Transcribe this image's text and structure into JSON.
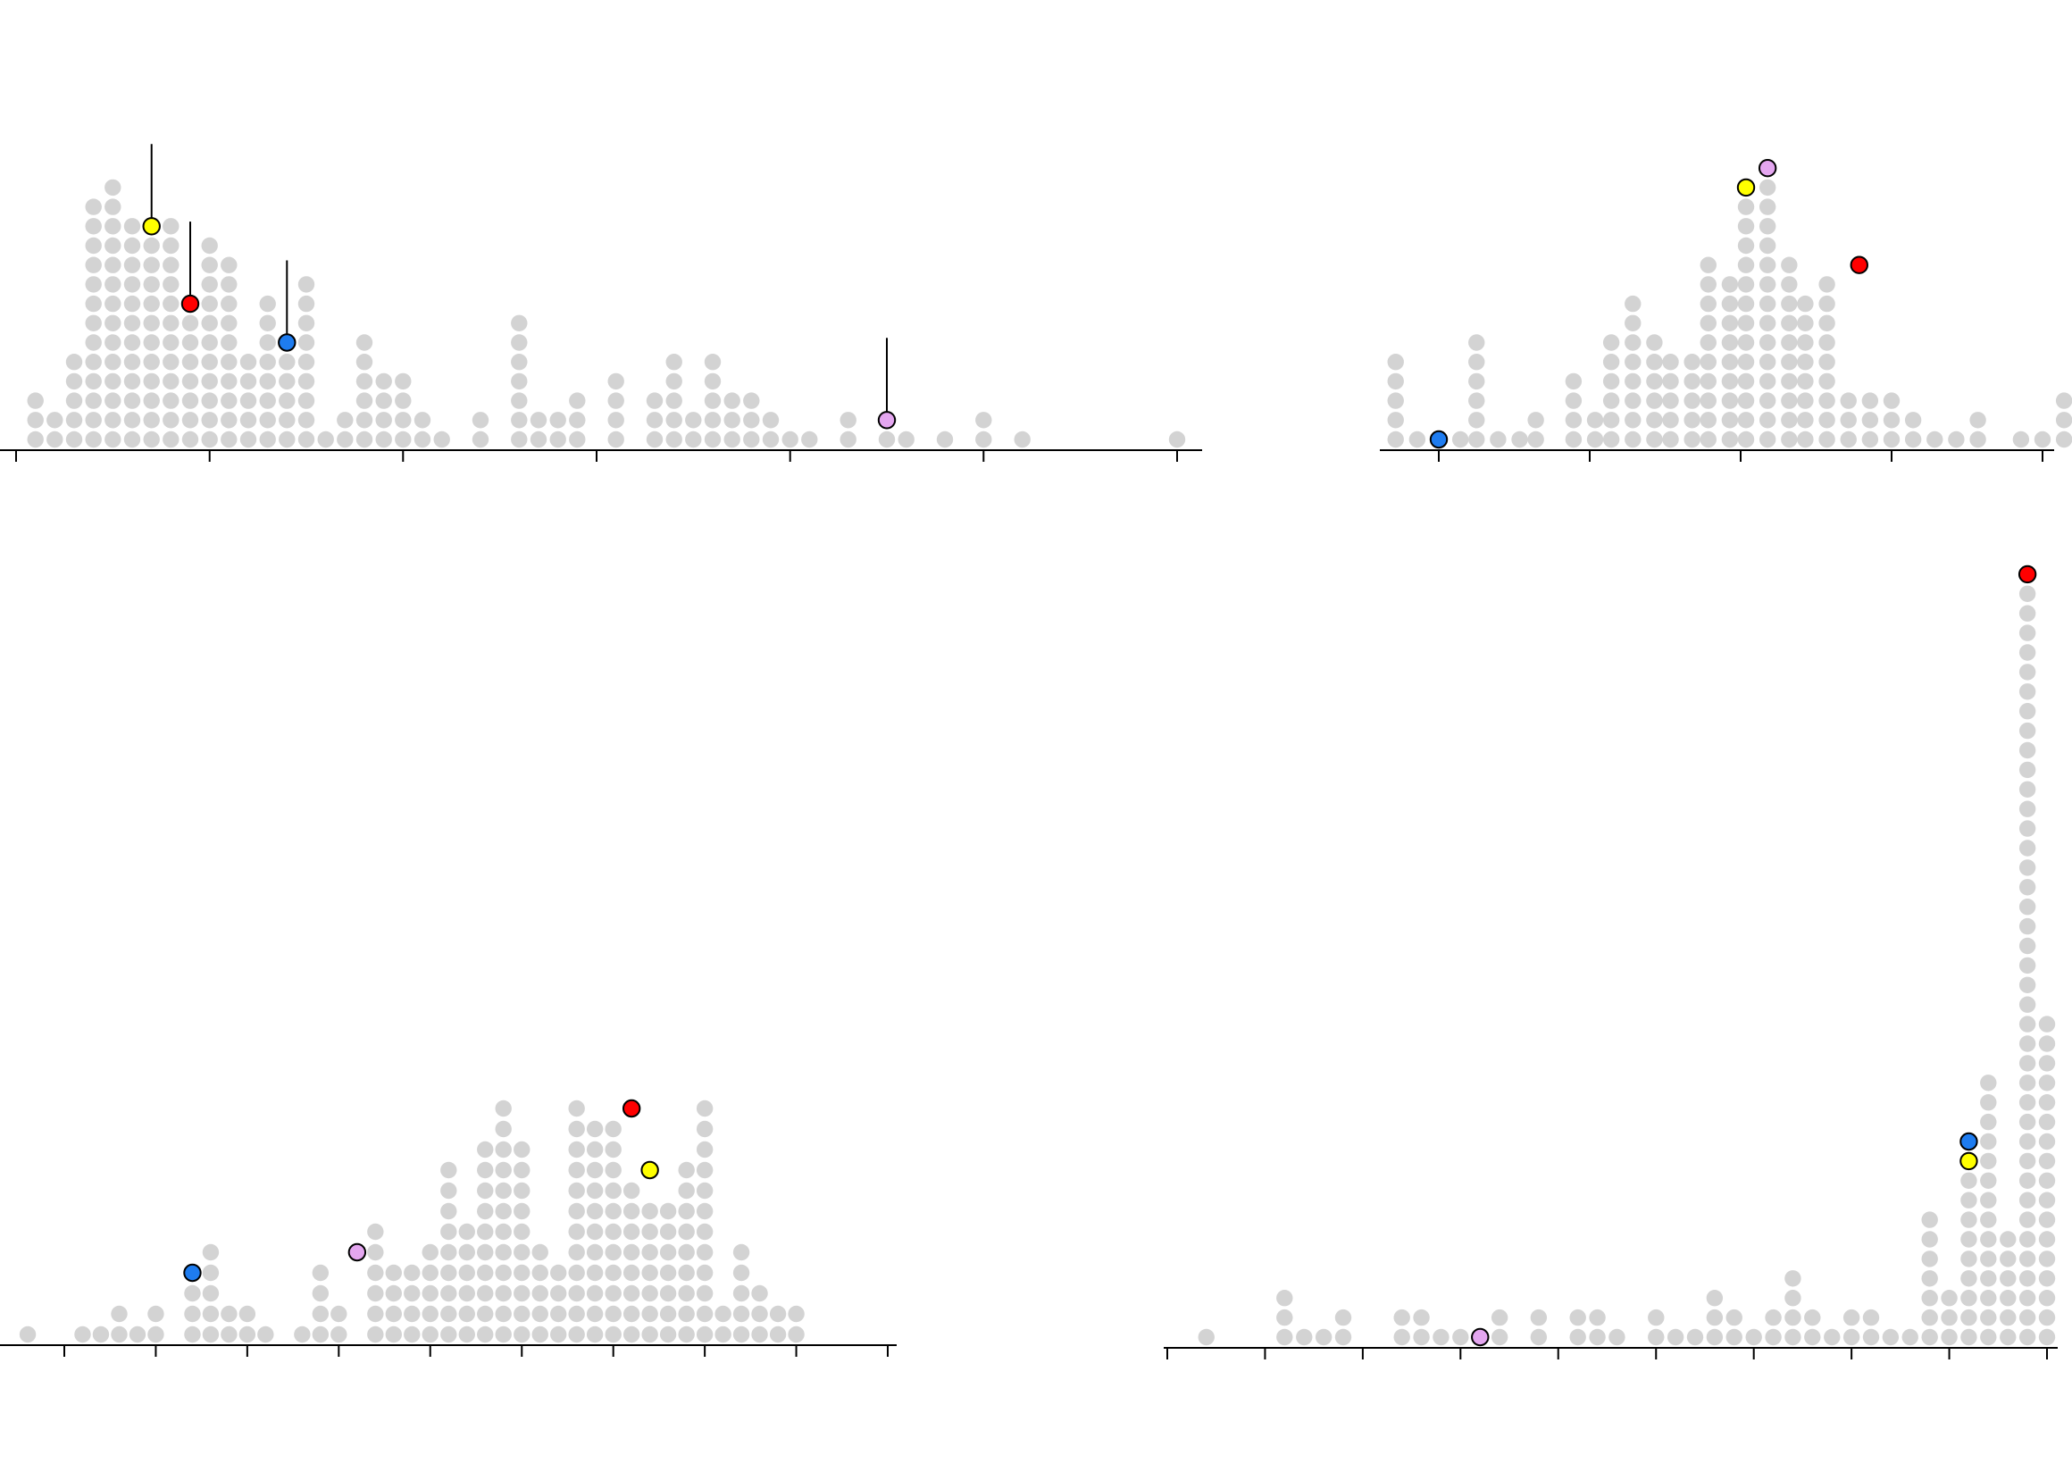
{
  "chart_data": [
    {
      "id": "top-left",
      "type": "dot-histogram",
      "xlim": [
        0.0,
        1.0
      ],
      "ticks": [
        0.0,
        0.1667,
        0.3333,
        0.5,
        0.6667,
        0.8333,
        1.0
      ],
      "columns": [
        {
          "x": 0.0167,
          "count": 3
        },
        {
          "x": 0.0333,
          "count": 2
        },
        {
          "x": 0.05,
          "count": 5
        },
        {
          "x": 0.0667,
          "count": 13
        },
        {
          "x": 0.0833,
          "count": 14
        },
        {
          "x": 0.1,
          "count": 12
        },
        {
          "x": 0.1167,
          "count": 12
        },
        {
          "x": 0.1333,
          "count": 12
        },
        {
          "x": 0.15,
          "count": 8
        },
        {
          "x": 0.1667,
          "count": 11
        },
        {
          "x": 0.1833,
          "count": 10
        },
        {
          "x": 0.2,
          "count": 5
        },
        {
          "x": 0.2167,
          "count": 8
        },
        {
          "x": 0.2333,
          "count": 6
        },
        {
          "x": 0.25,
          "count": 9
        },
        {
          "x": 0.2667,
          "count": 1
        },
        {
          "x": 0.2833,
          "count": 2
        },
        {
          "x": 0.3,
          "count": 6
        },
        {
          "x": 0.3167,
          "count": 4
        },
        {
          "x": 0.3333,
          "count": 4
        },
        {
          "x": 0.35,
          "count": 2
        },
        {
          "x": 0.3667,
          "count": 1
        },
        {
          "x": 0.4,
          "count": 2
        },
        {
          "x": 0.4333,
          "count": 7
        },
        {
          "x": 0.45,
          "count": 2
        },
        {
          "x": 0.4667,
          "count": 2
        },
        {
          "x": 0.4833,
          "count": 3
        },
        {
          "x": 0.5167,
          "count": 4
        },
        {
          "x": 0.55,
          "count": 3
        },
        {
          "x": 0.5667,
          "count": 5
        },
        {
          "x": 0.5833,
          "count": 2
        },
        {
          "x": 0.6,
          "count": 5
        },
        {
          "x": 0.6167,
          "count": 3
        },
        {
          "x": 0.6333,
          "count": 3
        },
        {
          "x": 0.65,
          "count": 2
        },
        {
          "x": 0.6667,
          "count": 1
        },
        {
          "x": 0.6833,
          "count": 1
        },
        {
          "x": 0.7167,
          "count": 2
        },
        {
          "x": 0.75,
          "count": 2
        },
        {
          "x": 0.7667,
          "count": 1
        },
        {
          "x": 0.8,
          "count": 1
        },
        {
          "x": 0.8333,
          "count": 2
        },
        {
          "x": 0.8667,
          "count": 1
        },
        {
          "x": 1.0,
          "count": 1
        }
      ],
      "highlights": [
        {
          "x": 0.1167,
          "level": 12,
          "color": "#ffff00",
          "stem": true
        },
        {
          "x": 0.15,
          "level": 8,
          "color": "#ff0000",
          "stem": true
        },
        {
          "x": 0.2333,
          "level": 6,
          "color": "#1e7cf0",
          "stem": true
        },
        {
          "x": 0.75,
          "level": 2,
          "color": "#e4a6f0",
          "stem": true
        }
      ]
    },
    {
      "id": "top-right",
      "type": "dot-histogram",
      "xlim": [
        0.0,
        1.0
      ],
      "ticks": [
        0.0,
        0.25,
        0.5,
        0.75,
        1.0
      ],
      "columns": [
        {
          "x": -0.0714,
          "count": 5
        },
        {
          "x": -0.0357,
          "count": 1
        },
        {
          "x": 0.0,
          "count": 1
        },
        {
          "x": 0.0357,
          "count": 1
        },
        {
          "x": 0.0625,
          "count": 6
        },
        {
          "x": 0.0982,
          "count": 1
        },
        {
          "x": 0.1339,
          "count": 1
        },
        {
          "x": 0.1607,
          "count": 2
        },
        {
          "x": 0.2232,
          "count": 4
        },
        {
          "x": 0.2589,
          "count": 2
        },
        {
          "x": 0.2857,
          "count": 6
        },
        {
          "x": 0.3214,
          "count": 8
        },
        {
          "x": 0.3571,
          "count": 6
        },
        {
          "x": 0.3839,
          "count": 5
        },
        {
          "x": 0.4196,
          "count": 5
        },
        {
          "x": 0.4464,
          "count": 10
        },
        {
          "x": 0.4821,
          "count": 9
        },
        {
          "x": 0.5089,
          "count": 14
        },
        {
          "x": 0.5446,
          "count": 15
        },
        {
          "x": 0.5804,
          "count": 10
        },
        {
          "x": 0.6071,
          "count": 8
        },
        {
          "x": 0.6429,
          "count": 9
        },
        {
          "x": 0.6786,
          "count": 3
        },
        {
          "x": 0.7143,
          "count": 3
        },
        {
          "x": 0.75,
          "count": 3
        },
        {
          "x": 0.7857,
          "count": 2
        },
        {
          "x": 0.8214,
          "count": 1
        },
        {
          "x": 0.8571,
          "count": 1
        },
        {
          "x": 0.8929,
          "count": 2
        },
        {
          "x": 0.9643,
          "count": 1
        },
        {
          "x": 1.0,
          "count": 1
        },
        {
          "x": 1.0357,
          "count": 3
        }
      ],
      "highlights": [
        {
          "x": 0.0,
          "level": 1,
          "color": "#1e7cf0",
          "stem": false
        },
        {
          "x": 0.5089,
          "level": 14,
          "color": "#ffff00",
          "stem": false
        },
        {
          "x": 0.5446,
          "level": 15,
          "color": "#e4a6f0",
          "stem": false
        },
        {
          "x": 0.6964,
          "level": 10,
          "color": "#ff0000",
          "stem": false
        }
      ]
    },
    {
      "id": "bottom-left",
      "type": "dot-histogram",
      "xlim": [
        0.0,
        1.0
      ],
      "ticks": [
        0.0,
        0.1111,
        0.2222,
        0.3333,
        0.4444,
        0.5556,
        0.6667,
        0.7778,
        0.8889,
        1.0
      ],
      "columns": [
        {
          "x": -0.0444,
          "count": 1
        },
        {
          "x": 0.0222,
          "count": 1
        },
        {
          "x": 0.0444,
          "count": 1
        },
        {
          "x": 0.0667,
          "count": 2
        },
        {
          "x": 0.0889,
          "count": 1
        },
        {
          "x": 0.1111,
          "count": 2
        },
        {
          "x": 0.1556,
          "count": 4
        },
        {
          "x": 0.1778,
          "count": 5
        },
        {
          "x": 0.2,
          "count": 2
        },
        {
          "x": 0.2222,
          "count": 2
        },
        {
          "x": 0.2444,
          "count": 1
        },
        {
          "x": 0.2889,
          "count": 1
        },
        {
          "x": 0.3111,
          "count": 4
        },
        {
          "x": 0.3333,
          "count": 2
        },
        {
          "x": 0.3778,
          "count": 6
        },
        {
          "x": 0.4,
          "count": 4
        },
        {
          "x": 0.4222,
          "count": 4
        },
        {
          "x": 0.4444,
          "count": 5
        },
        {
          "x": 0.4667,
          "count": 9
        },
        {
          "x": 0.4889,
          "count": 6
        },
        {
          "x": 0.5111,
          "count": 10
        },
        {
          "x": 0.5333,
          "count": 12
        },
        {
          "x": 0.5556,
          "count": 10
        },
        {
          "x": 0.5778,
          "count": 5
        },
        {
          "x": 0.6,
          "count": 4
        },
        {
          "x": 0.6222,
          "count": 12
        },
        {
          "x": 0.6444,
          "count": 11
        },
        {
          "x": 0.6667,
          "count": 11
        },
        {
          "x": 0.6889,
          "count": 8
        },
        {
          "x": 0.7111,
          "count": 7
        },
        {
          "x": 0.7333,
          "count": 7
        },
        {
          "x": 0.7556,
          "count": 9
        },
        {
          "x": 0.7778,
          "count": 12
        },
        {
          "x": 0.8,
          "count": 2
        },
        {
          "x": 0.8222,
          "count": 5
        },
        {
          "x": 0.8444,
          "count": 3
        },
        {
          "x": 0.8667,
          "count": 2
        },
        {
          "x": 0.8889,
          "count": 2
        }
      ],
      "highlights": [
        {
          "x": 0.1556,
          "level": 4,
          "color": "#1e7cf0",
          "stem": false
        },
        {
          "x": 0.3556,
          "level": 5,
          "color": "#e4a6f0",
          "stem": false
        },
        {
          "x": 0.6889,
          "level": 12,
          "color": "#ff0000",
          "stem": false
        },
        {
          "x": 0.7111,
          "level": 9,
          "color": "#ffff00",
          "stem": false
        }
      ]
    },
    {
      "id": "bottom-right",
      "type": "dot-histogram",
      "xlim": [
        0.0,
        1.0
      ],
      "ticks": [
        0.0,
        0.1111,
        0.2222,
        0.3333,
        0.4444,
        0.5556,
        0.6667,
        0.7778,
        0.8889,
        1.0
      ],
      "columns": [
        {
          "x": 0.0444,
          "count": 1
        },
        {
          "x": 0.1333,
          "count": 3
        },
        {
          "x": 0.1556,
          "count": 1
        },
        {
          "x": 0.1778,
          "count": 1
        },
        {
          "x": 0.2,
          "count": 2
        },
        {
          "x": 0.2667,
          "count": 2
        },
        {
          "x": 0.2889,
          "count": 2
        },
        {
          "x": 0.3111,
          "count": 1
        },
        {
          "x": 0.3333,
          "count": 1
        },
        {
          "x": 0.3778,
          "count": 2
        },
        {
          "x": 0.4222,
          "count": 2
        },
        {
          "x": 0.4667,
          "count": 2
        },
        {
          "x": 0.4889,
          "count": 2
        },
        {
          "x": 0.5111,
          "count": 1
        },
        {
          "x": 0.5556,
          "count": 2
        },
        {
          "x": 0.5778,
          "count": 1
        },
        {
          "x": 0.6,
          "count": 1
        },
        {
          "x": 0.6222,
          "count": 3
        },
        {
          "x": 0.6444,
          "count": 2
        },
        {
          "x": 0.6667,
          "count": 1
        },
        {
          "x": 0.6889,
          "count": 2
        },
        {
          "x": 0.7111,
          "count": 4
        },
        {
          "x": 0.7333,
          "count": 2
        },
        {
          "x": 0.7556,
          "count": 1
        },
        {
          "x": 0.7778,
          "count": 2
        },
        {
          "x": 0.8,
          "count": 2
        },
        {
          "x": 0.8222,
          "count": 1
        },
        {
          "x": 0.8444,
          "count": 1
        },
        {
          "x": 0.8667,
          "count": 7
        },
        {
          "x": 0.8889,
          "count": 3
        },
        {
          "x": 0.9111,
          "count": 9
        },
        {
          "x": 0.9333,
          "count": 14
        },
        {
          "x": 0.9556,
          "count": 6
        },
        {
          "x": 0.9778,
          "count": 40
        },
        {
          "x": 1.0,
          "count": 17
        }
      ],
      "highlights": [
        {
          "x": 0.3556,
          "level": 1,
          "color": "#e4a6f0",
          "stem": false
        },
        {
          "x": 0.9111,
          "level": 10,
          "color": "#ffff00",
          "stem": false
        },
        {
          "x": 0.9111,
          "level": 11,
          "color": "#1e7cf0",
          "stem": false
        },
        {
          "x": 0.9778,
          "level": 40,
          "color": "#ff0000",
          "stem": false
        }
      ]
    }
  ]
}
